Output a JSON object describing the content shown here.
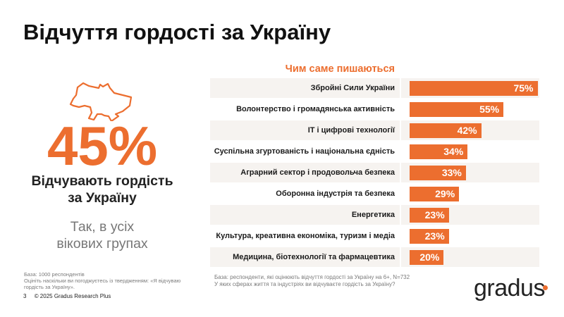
{
  "title": "Відчуття гордості за Україну",
  "left": {
    "big_value": "45%",
    "subtitle_line1": "Відчувають гордість",
    "subtitle_line2": "за Україну",
    "note_line1": "Так, в усіх",
    "note_line2": "вікових групах",
    "map_icon": "ukraine-map-outline"
  },
  "footnote_left": {
    "line1": "База: 1000 респондентів",
    "line2": "Оцініть наскільки ви погоджуєтесь із твердженням: «Я відчуваю",
    "line3": "гордість за Україну»."
  },
  "footer": {
    "page": "3",
    "copyright": "© 2025 Gradus Research Plus"
  },
  "footnote_right": {
    "line1": "База: респонденти, які оцінюють відчуття гордості за Україну на 6+, N=732",
    "line2": "У яких сферах життя та індустріях ви відчуваєте гордість за Україну?"
  },
  "logo": "gradus",
  "colors": {
    "accent": "#ec6e2f",
    "row_bg": "#f6f3f0"
  },
  "chart_data": {
    "type": "bar",
    "orientation": "horizontal",
    "title": "Чим саме пишаються",
    "categories": [
      "Збройні Сили України",
      "Волонтерство і громадянська активність",
      "IT і цифрові технології",
      "Суспільна згуртованість і національна єдність",
      "Аграрний сектор і продовольча безпека",
      "Оборонна індустрія та безпека",
      "Енергетика",
      "Культура, креативна економіка, туризм і медіа",
      "Медицина, біотехнології та фармацевтика"
    ],
    "values": [
      75,
      55,
      42,
      34,
      33,
      29,
      23,
      23,
      20
    ],
    "labels": [
      "75%",
      "55%",
      "42%",
      "34%",
      "33%",
      "29%",
      "23%",
      "23%",
      "20%"
    ],
    "unit": "%",
    "xlim": [
      0,
      100
    ],
    "grid": false
  }
}
